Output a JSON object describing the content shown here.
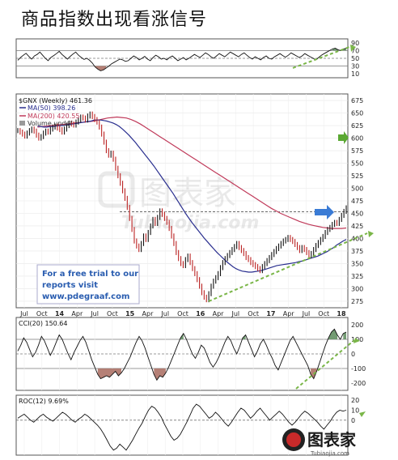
{
  "page": {
    "title": "商品指数出现看涨信号"
  },
  "chart_data": [
    {
      "type": "line",
      "panel": "rsi",
      "y_ticks": [
        "90",
        "70",
        "50",
        "30",
        "10"
      ],
      "ylim": [
        0,
        100
      ],
      "levels": [
        70,
        50,
        30
      ],
      "values": [
        45,
        52,
        58,
        63,
        55,
        48,
        56,
        60,
        66,
        58,
        50,
        44,
        52,
        57,
        62,
        68,
        60,
        54,
        48,
        55,
        61,
        66,
        58,
        52,
        47,
        50,
        45,
        38,
        28,
        22,
        18,
        20,
        25,
        30,
        36,
        40,
        44,
        48,
        46,
        42,
        44,
        50,
        56,
        52,
        46,
        50,
        55,
        48,
        44,
        52,
        58,
        54,
        48,
        50,
        46,
        52,
        56,
        50,
        44,
        48,
        52,
        46,
        50,
        55,
        60,
        56,
        52,
        58,
        64,
        60,
        54,
        50,
        56,
        62,
        58,
        54,
        60,
        66,
        62,
        58,
        54,
        60,
        64,
        58,
        52,
        48,
        54,
        50,
        46,
        52,
        56,
        50,
        48,
        54,
        58,
        62,
        57,
        53,
        58,
        64,
        60,
        56,
        52,
        56,
        62,
        58,
        54,
        50,
        46,
        52,
        58,
        62,
        66,
        70,
        74,
        76,
        72,
        70,
        74,
        76
      ]
    },
    {
      "type": "line",
      "panel": "price",
      "series": [
        {
          "name": "$GNX (Weekly) 461.36",
          "color": "#111111",
          "values": [
            615,
            612,
            608,
            604,
            610,
            615,
            618,
            614,
            606,
            600,
            603,
            610,
            614,
            612,
            618,
            622,
            624,
            620,
            617,
            612,
            618,
            625,
            630,
            628,
            626,
            632,
            636,
            642,
            640,
            636,
            644,
            648,
            643,
            637,
            632,
            622,
            608,
            592,
            575,
            566,
            570,
            558,
            540,
            525,
            510,
            495,
            480,
            462,
            440,
            418,
            395,
            385,
            378,
            390,
            405,
            398,
            412,
            425,
            438,
            430,
            442,
            455,
            448,
            440,
            432,
            420,
            405,
            390,
            372,
            360,
            350,
            346,
            358,
            365,
            352,
            340,
            330,
            318,
            305,
            292,
            283,
            278,
            290,
            305,
            315,
            322,
            330,
            342,
            352,
            360,
            366,
            372,
            378,
            384,
            390,
            382,
            376,
            370,
            362,
            358,
            352,
            348,
            344,
            340,
            336,
            344,
            350,
            356,
            362,
            368,
            374,
            380,
            385,
            390,
            395,
            398,
            402,
            398,
            394,
            388,
            382,
            376,
            382,
            378,
            372,
            366,
            370,
            378,
            386,
            392,
            398,
            404,
            412,
            418,
            422,
            428,
            432,
            430,
            438,
            446,
            454,
            461
          ]
        },
        {
          "name": "MA(50) 398.26",
          "color": "#2a2f8f",
          "values": [
            624,
            623,
            622,
            622,
            623,
            623,
            624,
            625,
            625,
            626,
            627,
            628,
            629,
            630,
            631,
            632,
            633,
            634,
            636,
            636,
            636,
            635,
            634,
            632,
            630,
            627,
            623,
            618,
            612,
            606,
            599,
            592,
            584,
            576,
            568,
            560,
            552,
            544,
            535,
            526,
            517,
            508,
            499,
            490,
            480,
            470,
            460,
            450,
            441,
            432,
            424,
            416,
            408,
            400,
            393,
            386,
            379,
            372,
            366,
            360,
            354,
            349,
            344,
            340,
            337,
            335,
            334,
            333,
            333,
            334,
            335,
            336,
            338,
            340,
            342,
            344,
            346,
            347,
            348,
            349,
            350,
            351,
            352,
            354,
            355,
            357,
            359,
            361,
            363,
            365,
            368,
            371,
            374,
            378,
            382,
            387,
            391,
            395,
            398
          ]
        },
        {
          "name": "MA(200) 420.55",
          "color": "#c03a5a",
          "values": [
            622,
            623,
            624,
            625,
            626,
            627,
            628,
            629,
            630,
            631,
            632,
            633,
            634,
            636,
            638,
            640,
            641,
            642,
            641,
            640,
            637,
            633,
            628,
            622,
            616,
            610,
            604,
            598,
            592,
            586,
            580,
            574,
            568,
            562,
            556,
            550,
            544,
            538,
            532,
            526,
            520,
            514,
            508,
            502,
            496,
            490,
            484,
            478,
            472,
            466,
            460,
            455,
            450,
            446,
            442,
            438,
            434,
            431,
            428,
            426,
            424,
            422,
            421,
            420,
            420,
            420,
            421
          ]
        }
      ],
      "volume_label": "Volume undef",
      "y_ticks": [
        "675",
        "650",
        "625",
        "600",
        "575",
        "550",
        "525",
        "500",
        "475",
        "450",
        "425",
        "400",
        "375",
        "350",
        "325",
        "300",
        "275"
      ],
      "ylim": [
        262,
        688
      ],
      "dashed_level": 453
    },
    {
      "type": "line",
      "panel": "cci",
      "name": "CCI(20) 150.64",
      "y_ticks": [
        "200",
        "100",
        "0",
        "-100",
        "-200"
      ],
      "ylim": [
        -250,
        250
      ],
      "levels": [
        100,
        0,
        -100
      ],
      "values": [
        20,
        60,
        110,
        80,
        30,
        -20,
        10,
        60,
        120,
        90,
        40,
        -10,
        30,
        80,
        130,
        100,
        50,
        0,
        -40,
        10,
        50,
        90,
        120,
        80,
        20,
        -40,
        -90,
        -140,
        -170,
        -160,
        -150,
        -160,
        -140,
        -120,
        -150,
        -130,
        -100,
        -60,
        -20,
        30,
        80,
        120,
        90,
        40,
        -20,
        -80,
        -140,
        -180,
        -150,
        -160,
        -130,
        -90,
        -40,
        10,
        60,
        110,
        140,
        100,
        50,
        0,
        -30,
        10,
        60,
        40,
        -10,
        -60,
        -90,
        -60,
        -20,
        30,
        80,
        120,
        90,
        40,
        0,
        50,
        110,
        130,
        80,
        30,
        -20,
        20,
        70,
        100,
        60,
        10,
        -30,
        -80,
        -110,
        -60,
        -10,
        40,
        90,
        120,
        80,
        40,
        0,
        -40,
        -80,
        -140,
        -170,
        -120,
        -60,
        0,
        60,
        110,
        150,
        170,
        130,
        100,
        140,
        150
      ]
    },
    {
      "type": "line",
      "panel": "roc",
      "name": "ROC(12) 9.69%",
      "y_ticks": [
        "20",
        "10",
        "0"
      ],
      "ylim": [
        -35,
        25
      ],
      "level": 0,
      "values": [
        2,
        4,
        6,
        3,
        0,
        -2,
        1,
        4,
        6,
        3,
        1,
        -1,
        2,
        5,
        8,
        6,
        3,
        0,
        -2,
        1,
        3,
        6,
        4,
        1,
        -2,
        -5,
        -9,
        -14,
        -20,
        -26,
        -30,
        -28,
        -24,
        -27,
        -30,
        -25,
        -20,
        -14,
        -8,
        -3,
        4,
        10,
        14,
        12,
        8,
        3,
        -4,
        -10,
        -16,
        -20,
        -18,
        -14,
        -8,
        -2,
        5,
        12,
        16,
        14,
        10,
        6,
        2,
        4,
        8,
        5,
        1,
        -3,
        -6,
        -2,
        3,
        8,
        12,
        10,
        6,
        2,
        5,
        9,
        12,
        8,
        4,
        0,
        3,
        6,
        9,
        6,
        2,
        -2,
        -5,
        -2,
        2,
        6,
        9,
        7,
        4,
        1,
        -2,
        -6,
        -9,
        -5,
        -1,
        4,
        8,
        10,
        9,
        10
      ]
    }
  ],
  "x_axis": {
    "tick_labels": [
      "Jul",
      "Oct",
      "14",
      "Apr",
      "Jul",
      "Oct",
      "15",
      "Apr",
      "Jul",
      "Oct",
      "16",
      "Apr",
      "Jul",
      "Oct",
      "17",
      "Apr",
      "Jul",
      "Oct",
      "18"
    ]
  },
  "promo": {
    "line1": "For a free trial to our",
    "line2": "reports visit",
    "line3": "www.pdegraaf.com"
  },
  "watermark": {
    "site": "Tubiaojia.com",
    "brand": "图表家"
  },
  "colors": {
    "price": "#111111",
    "ma50": "#2a2f8f",
    "ma200": "#c03a5a",
    "fill_neg": "#a86a5e",
    "fill_pos": "#5a8a5a",
    "green_arrow": "#5aa832",
    "blue_arrow": "#3a7bd5",
    "trend_dash": "#7ab648",
    "promo_text": "#2a5db0"
  }
}
